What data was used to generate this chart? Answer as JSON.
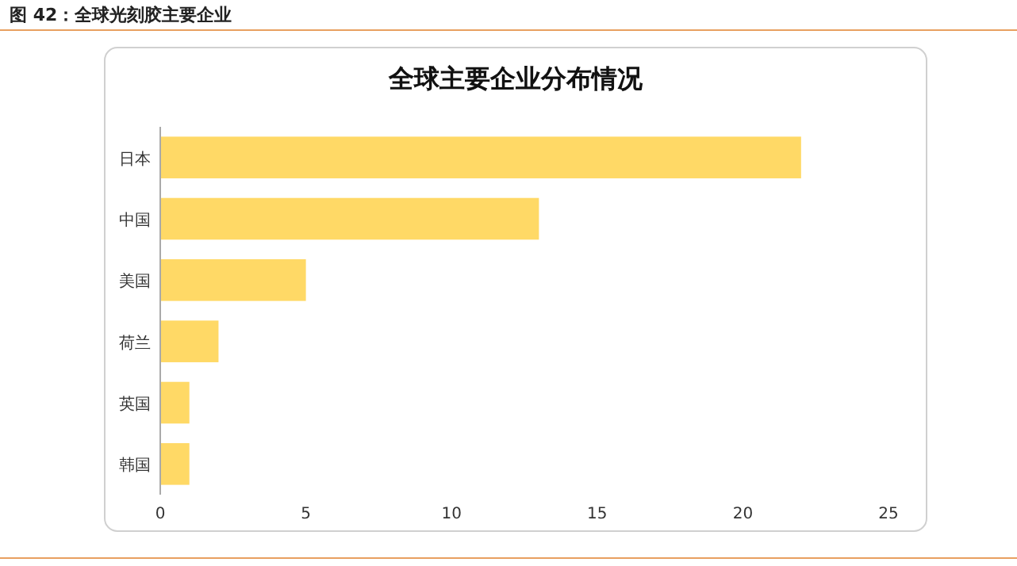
{
  "chart_data": {
    "type": "bar",
    "orientation": "horizontal",
    "title": "全球主要企业分布情况",
    "annotations": [
      "图 42：全球光刻胶主要企业"
    ],
    "categories": [
      "日本",
      "中国",
      "美国",
      "荷兰",
      "英国",
      "韩国"
    ],
    "values": [
      22,
      13,
      5,
      2,
      1,
      1
    ],
    "color": "#ffd966",
    "xlim": [
      0,
      25
    ],
    "xticks": [
      0,
      5,
      10,
      15,
      20,
      25
    ]
  }
}
